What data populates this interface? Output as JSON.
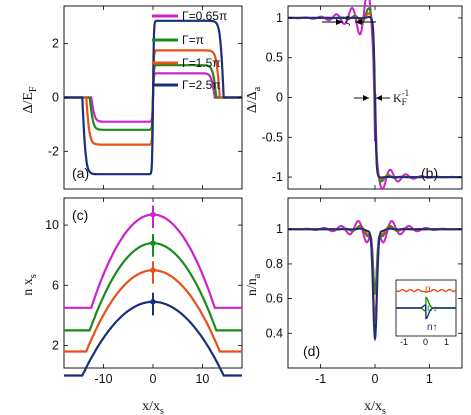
{
  "colors": {
    "g065": "#cc22cc",
    "g1": "#1a8a1a",
    "g15": "#e8501a",
    "g25": "#1a2f7a"
  },
  "legend": [
    "Γ=0.65π",
    "Γ=π",
    "Γ=1.5π",
    "Γ=2.5π"
  ],
  "chart_data": [
    {
      "panel": "(a)",
      "type": "line",
      "ylabel": "Δ/E",
      "ylabel_sub": "F",
      "xlim": [
        -18,
        18
      ],
      "ylim": [
        -3.4,
        3.4
      ],
      "yticks": [
        -2,
        0,
        2
      ],
      "series": [
        {
          "name": "Γ=0.65π",
          "plateau": 0.9,
          "edge": 12.5
        },
        {
          "name": "Γ=π",
          "plateau": 1.2,
          "edge": 12.8
        },
        {
          "name": "Γ=1.5π",
          "plateau": 1.75,
          "edge": 13.5
        },
        {
          "name": "Γ=2.5π",
          "plateau": 2.85,
          "edge": 14.3
        }
      ]
    },
    {
      "panel": "(b)",
      "type": "line",
      "ylabel": "Δ/Δ",
      "ylabel_sub": "a",
      "xlim": [
        -1.6,
        1.6
      ],
      "ylim": [
        -1.15,
        1.15
      ],
      "yticks": [
        -1,
        -0.5,
        0,
        0.5,
        1
      ],
      "yticklabels": [
        "-1",
        "-0.5",
        "0",
        "0.5",
        "1"
      ],
      "annotations": [
        "ξ",
        "K",
        "F",
        "-1"
      ]
    },
    {
      "panel": "(c)",
      "type": "line",
      "ylabel": "n x",
      "ylabel_sub": "s",
      "xlabel": "x/x",
      "xlabel_sub": "s",
      "xlim": [
        -18,
        18
      ],
      "ylim": [
        0.5,
        11.8
      ],
      "xticks": [
        -10,
        0,
        10
      ],
      "yticks": [
        2,
        6,
        10
      ],
      "series": [
        {
          "name": "Γ=0.65π",
          "peak": 10.7,
          "base": 4.5,
          "edge": 12.5
        },
        {
          "name": "Γ=π",
          "peak": 8.8,
          "base": 3.0,
          "edge": 12.8
        },
        {
          "name": "Γ=1.5π",
          "peak": 7.0,
          "base": 1.6,
          "edge": 13.5
        },
        {
          "name": "Γ=2.5π",
          "peak": 4.9,
          "base": 0.0,
          "edge": 14.3
        }
      ]
    },
    {
      "panel": "(d)",
      "type": "line",
      "ylabel": "n/n",
      "ylabel_sub": "a",
      "xlabel": "x/x",
      "xlabel_sub": "s",
      "xlim": [
        -1.6,
        1.6
      ],
      "ylim": [
        0.2,
        1.18
      ],
      "xticks": [
        -1,
        0,
        1
      ],
      "yticks": [
        0.4,
        0.6,
        0.8,
        1
      ],
      "yticklabels": [
        "0.4",
        "0.6",
        "0.8",
        "1"
      ],
      "series": [
        {
          "name": "Γ=0.65π",
          "dip": 0.52
        },
        {
          "name": "Γ=π",
          "dip": 0.55
        },
        {
          "name": "Γ=1.5π",
          "dip": 0.42
        },
        {
          "name": "Γ=2.5π",
          "dip": 0.34
        }
      ],
      "inset": {
        "labels": [
          "n",
          "n↓",
          "n↑"
        ],
        "xticks": [
          "-1",
          "0",
          "1"
        ]
      }
    }
  ]
}
